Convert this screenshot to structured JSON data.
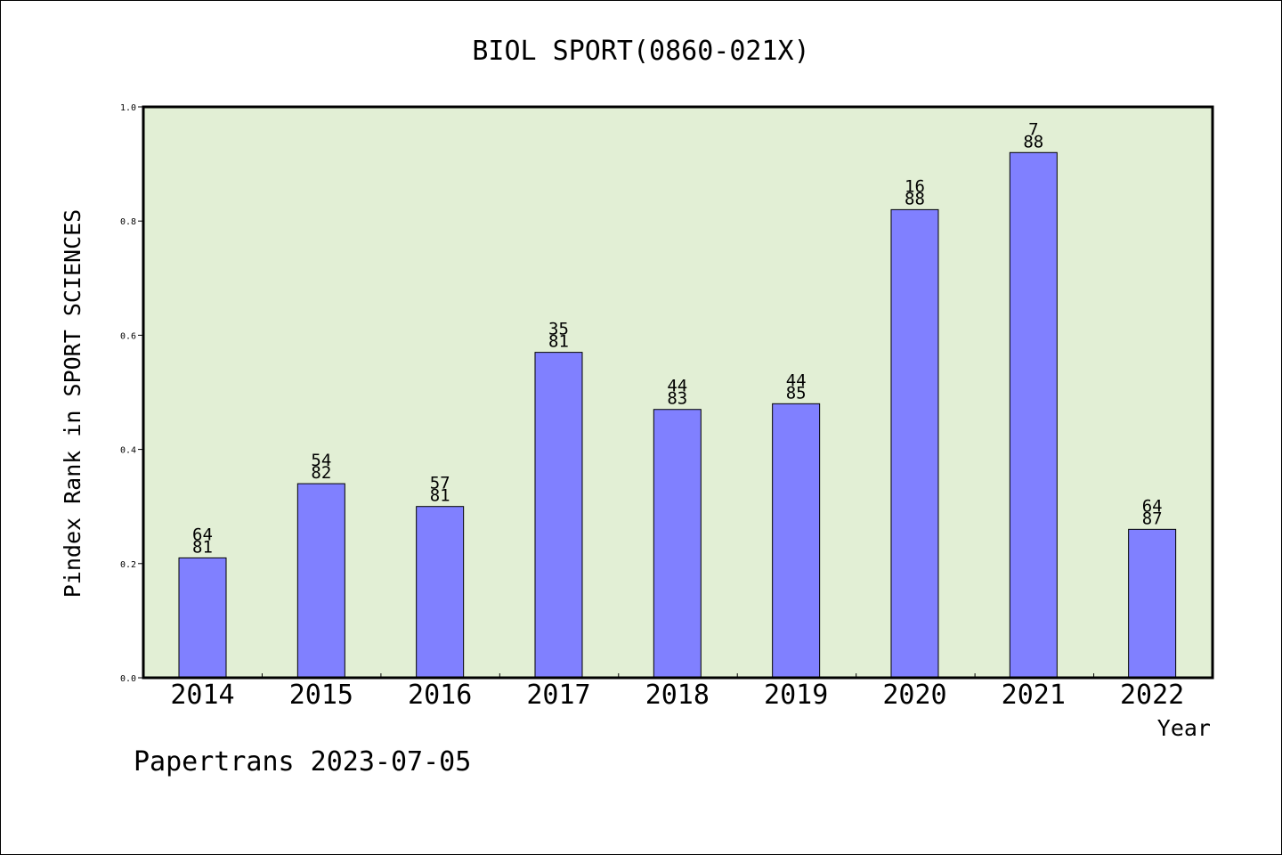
{
  "chart_data": {
    "type": "bar",
    "title": "BIOL SPORT(0860-021X)",
    "xlabel": "Year",
    "ylabel": "Pindex Rank in SPORT SCIENCES",
    "categories": [
      "2014",
      "2015",
      "2016",
      "2017",
      "2018",
      "2019",
      "2020",
      "2021",
      "2022"
    ],
    "values": [
      0.21,
      0.34,
      0.3,
      0.57,
      0.47,
      0.48,
      0.82,
      0.92,
      0.26
    ],
    "bar_labels": [
      [
        "64",
        "81"
      ],
      [
        "54",
        "82"
      ],
      [
        "57",
        "81"
      ],
      [
        "35",
        "81"
      ],
      [
        "44",
        "83"
      ],
      [
        "44",
        "85"
      ],
      [
        "16",
        "88"
      ],
      [
        "7",
        "88"
      ],
      [
        "64",
        "87"
      ]
    ],
    "ylim": [
      0,
      1.0
    ],
    "yticks": [
      "0.0",
      "0.2",
      "0.4",
      "0.6",
      "0.8",
      "1.0"
    ],
    "grid": false,
    "colors": {
      "bar": "#8080ff",
      "plot_background": "#e2efd5",
      "axis": "#000000"
    }
  },
  "footer": {
    "credit": "Papertrans 2023-07-05"
  }
}
